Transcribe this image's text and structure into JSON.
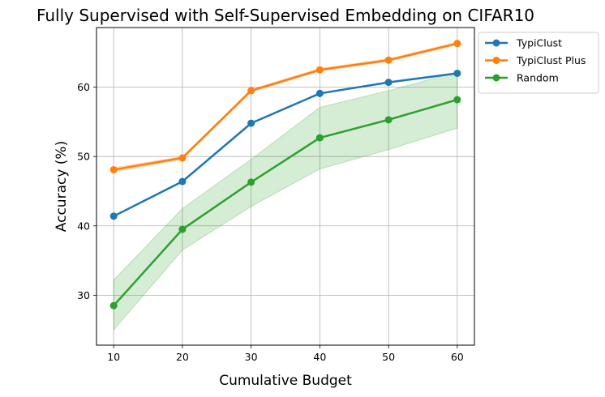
{
  "chart_data": {
    "type": "line",
    "title": "Fully Supervised with Self-Supervised Embedding on CIFAR10",
    "xlabel": "Cumulative Budget",
    "ylabel": "Accuracy (%)",
    "x": [
      10,
      20,
      30,
      40,
      50,
      60
    ],
    "xticks": [
      "10",
      "20",
      "30",
      "40",
      "50",
      "60"
    ],
    "yticks": [
      "30",
      "40",
      "50",
      "60"
    ],
    "xlim": [
      7.5,
      62.5
    ],
    "ylim": [
      22.8,
      68.6
    ],
    "grid": true,
    "legend_position": "outside-top-right",
    "series": [
      {
        "name": "TypiClust",
        "color": "#1f77b4",
        "values": [
          41.4,
          46.4,
          54.8,
          59.1,
          60.7,
          62.0
        ]
      },
      {
        "name": "TypiClust Plus",
        "color": "#ff7f0e",
        "values": [
          48.1,
          49.8,
          59.5,
          62.5,
          63.9,
          66.3
        ],
        "band_lower": [
          47.8,
          49.6,
          59.3,
          62.3,
          63.7,
          66.1
        ],
        "band_upper": [
          48.4,
          50.0,
          59.7,
          62.7,
          64.1,
          66.5
        ]
      },
      {
        "name": "Random",
        "color": "#2ca02c",
        "values": [
          28.5,
          39.5,
          46.3,
          52.7,
          55.3,
          58.2
        ],
        "band_lower": [
          25.0,
          36.5,
          42.8,
          48.2,
          51.0,
          54.1
        ],
        "band_upper": [
          32.2,
          42.5,
          49.6,
          57.1,
          59.5,
          62.2
        ]
      }
    ]
  }
}
